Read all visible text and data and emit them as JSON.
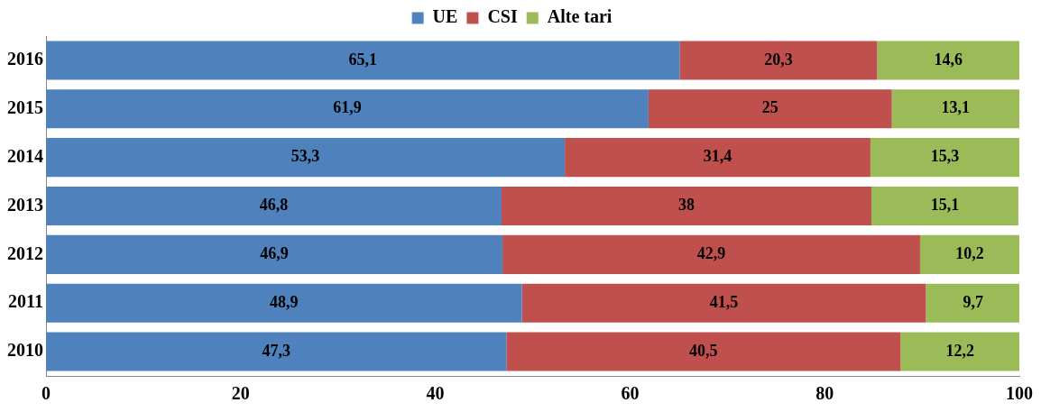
{
  "chart_data": {
    "type": "bar",
    "orientation": "horizontal",
    "stacked": true,
    "categories": [
      "2016",
      "2015",
      "2014",
      "2013",
      "2012",
      "2011",
      "2010"
    ],
    "series": [
      {
        "name": "UE",
        "color": "#4f81bd",
        "values": [
          65.1,
          61.9,
          53.3,
          46.8,
          46.9,
          48.9,
          47.3
        ],
        "value_labels": [
          "65,1",
          "61,9",
          "53,3",
          "46,8",
          "46,9",
          "48,9",
          "47,3"
        ]
      },
      {
        "name": "CSI",
        "color": "#c0504d",
        "values": [
          20.3,
          25,
          31.4,
          38,
          42.9,
          41.5,
          40.5
        ],
        "value_labels": [
          "20,3",
          "25",
          "31,4",
          "38",
          "42,9",
          "41,5",
          "40,5"
        ]
      },
      {
        "name": "Alte tari",
        "color": "#9bbb59",
        "values": [
          14.6,
          13.1,
          15.3,
          15.1,
          10.2,
          9.7,
          12.2
        ],
        "value_labels": [
          "14,6",
          "13,1",
          "15,3",
          "15,1",
          "10,2",
          "9,7",
          "12,2"
        ]
      }
    ],
    "xlim": [
      0,
      100
    ],
    "xticks": [
      0,
      20,
      40,
      60,
      80,
      100
    ],
    "grid": false,
    "legend": "top"
  }
}
